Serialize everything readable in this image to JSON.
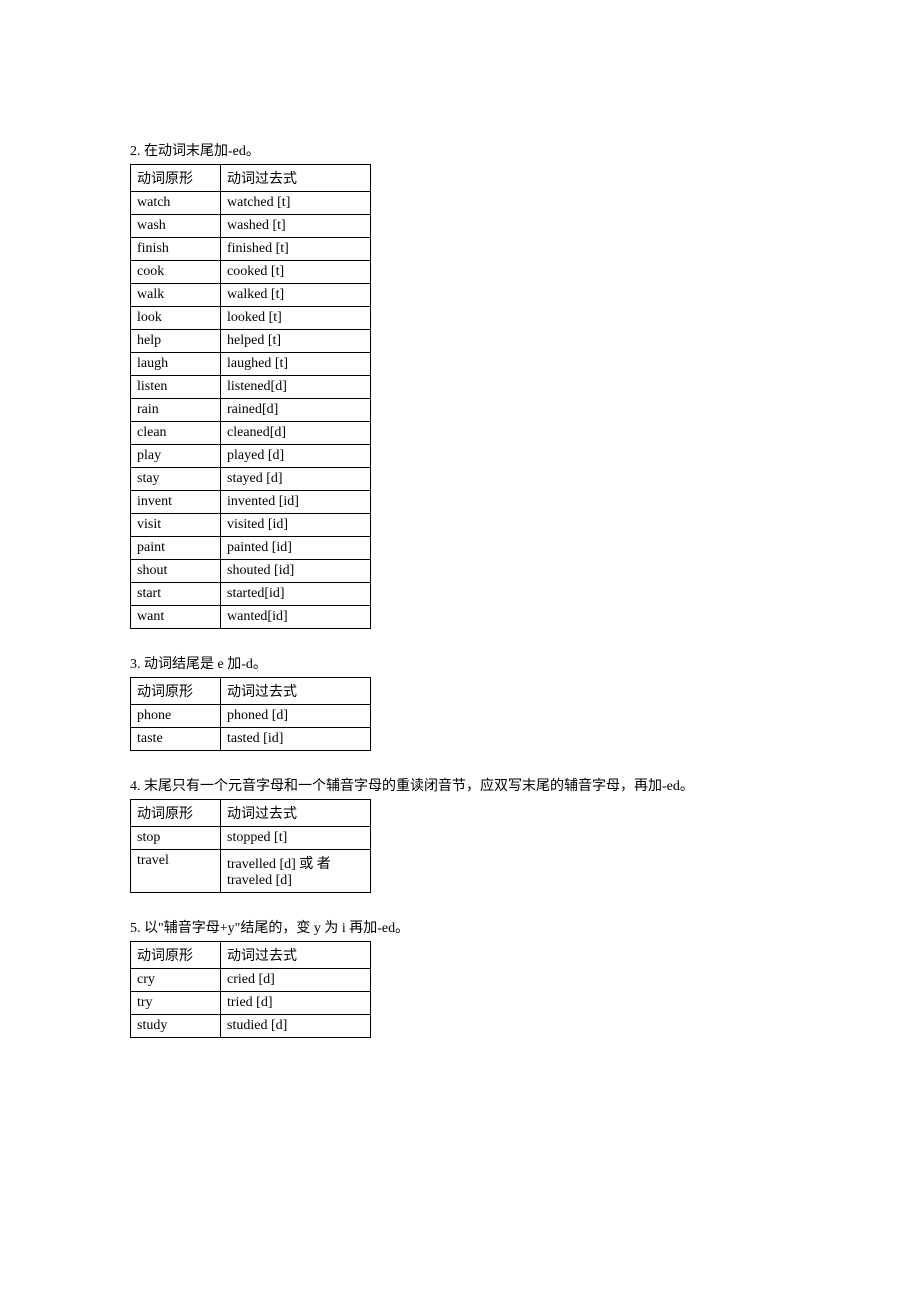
{
  "sections": [
    {
      "title": "2. 在动词末尾加-ed。",
      "header": [
        "动词原形",
        "动词过去式"
      ],
      "rows": [
        [
          "watch",
          "watched [t]"
        ],
        [
          "wash",
          "washed [t]"
        ],
        [
          "finish",
          "finished [t]"
        ],
        [
          "cook",
          "cooked [t]"
        ],
        [
          "walk",
          "walked [t]"
        ],
        [
          "look",
          "looked [t]"
        ],
        [
          "help",
          "helped [t]"
        ],
        [
          "laugh",
          "laughed [t]"
        ],
        [
          "listen",
          "listened[d]"
        ],
        [
          "rain",
          "rained[d]"
        ],
        [
          "clean",
          "cleaned[d]"
        ],
        [
          "play",
          "played [d]"
        ],
        [
          "stay",
          "stayed [d]"
        ],
        [
          "invent",
          "invented [id]"
        ],
        [
          "visit",
          "visited [id]"
        ],
        [
          "paint",
          "painted [id]"
        ],
        [
          "shout",
          "shouted [id]"
        ],
        [
          "start",
          "started[id]"
        ],
        [
          "want",
          "wanted[id]"
        ]
      ]
    },
    {
      "title": "3. 动词结尾是 e 加-d。",
      "header": [
        "动词原形",
        "动词过去式"
      ],
      "rows": [
        [
          "phone",
          "phoned [d]"
        ],
        [
          "taste",
          "tasted [id]"
        ]
      ]
    },
    {
      "title": "4. 末尾只有一个元音字母和一个辅音字母的重读闭音节，应双写末尾的辅音字母，再加-ed。",
      "header": [
        "动词原形",
        "动词过去式"
      ],
      "rows": [
        [
          "stop",
          "stopped [t]"
        ],
        [
          "travel",
          "travelled [d] 或 者 traveled [d]"
        ]
      ]
    },
    {
      "title": "5. 以\"辅音字母+y\"结尾的，变 y 为 i 再加-ed。",
      "header": [
        "动词原形",
        "动词过去式"
      ],
      "rows": [
        [
          "cry",
          "cried [d]"
        ],
        [
          "try",
          "tried [d]"
        ],
        [
          "study",
          "studied [d]"
        ]
      ]
    }
  ]
}
